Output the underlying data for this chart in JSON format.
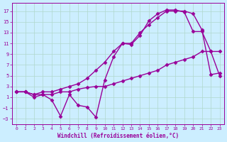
{
  "xlabel": "Windchill (Refroidissement éolien,°C)",
  "background_color": "#cceeff",
  "grid_color": "#b0d8cc",
  "line_color": "#990099",
  "xlim": [
    -0.5,
    23.5
  ],
  "ylim": [
    -4,
    18.5
  ],
  "yticks": [
    -3,
    -1,
    1,
    3,
    5,
    7,
    9,
    11,
    13,
    15,
    17
  ],
  "xticks": [
    0,
    1,
    2,
    3,
    4,
    5,
    6,
    7,
    8,
    9,
    10,
    11,
    12,
    13,
    14,
    15,
    16,
    17,
    18,
    19,
    20,
    21,
    22,
    23
  ],
  "series": [
    {
      "x": [
        0,
        1,
        2,
        3,
        4,
        5,
        6,
        7,
        8,
        9,
        10,
        11,
        12,
        13,
        14,
        15,
        16,
        17,
        18,
        19,
        20,
        21,
        22,
        23
      ],
      "y": [
        2,
        2,
        1,
        1.5,
        0.5,
        -2.5,
        1.5,
        -0.5,
        -0.8,
        -2.7,
        4.2,
        8.5,
        11,
        10.8,
        12.5,
        15.2,
        16.5,
        17.2,
        17.2,
        16.8,
        13.2,
        13.2,
        9.5,
        9.5
      ],
      "marker": "D",
      "markersize": 2.5,
      "linewidth": 1.0
    },
    {
      "x": [
        0,
        1,
        2,
        3,
        4,
        5,
        6,
        7,
        8,
        9,
        10,
        11,
        12,
        13,
        14,
        15,
        16,
        17,
        18,
        19,
        20,
        21,
        22,
        23
      ],
      "y": [
        2,
        2,
        1.5,
        2,
        2,
        2.5,
        3,
        3.5,
        4.5,
        6,
        7.5,
        9.5,
        11,
        11,
        13,
        14.5,
        15.8,
        17,
        17,
        17,
        16.5,
        13.5,
        5.2,
        5.5
      ],
      "marker": "D",
      "markersize": 2.5,
      "linewidth": 1.0
    },
    {
      "x": [
        0,
        1,
        2,
        3,
        4,
        5,
        6,
        7,
        8,
        9,
        10,
        11,
        12,
        13,
        14,
        15,
        16,
        17,
        18,
        19,
        20,
        21,
        22,
        23
      ],
      "y": [
        2,
        2,
        1.5,
        1.5,
        1.5,
        2,
        2,
        2.5,
        2.8,
        3,
        3,
        3.5,
        4,
        4.5,
        5,
        5.5,
        6,
        7,
        7.5,
        8,
        8.5,
        9.5,
        9.5,
        5
      ],
      "marker": "D",
      "markersize": 2.5,
      "linewidth": 1.0
    }
  ]
}
